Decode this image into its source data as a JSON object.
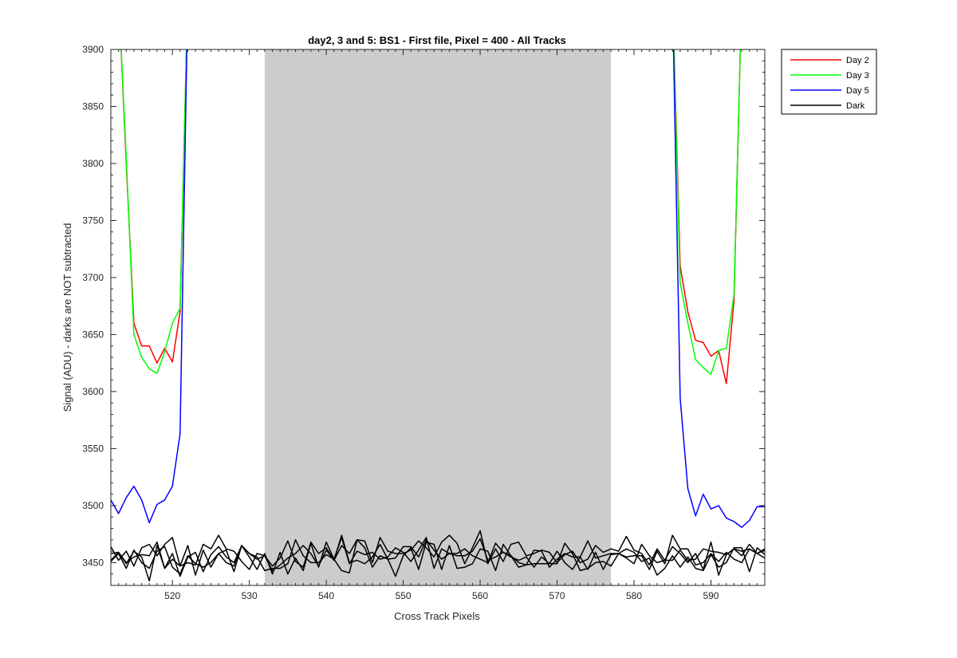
{
  "chart_data": {
    "type": "line",
    "title": "day2, 3 and 5: BS1 - First file, Pixel = 400 - All Tracks",
    "xlabel": "Cross Track Pixels",
    "ylabel": "Signal (ADU) - darks are NOT subtracted",
    "xlim": [
      512,
      597
    ],
    "ylim": [
      3430,
      3900
    ],
    "xticks": [
      520,
      530,
      540,
      550,
      560,
      570,
      580,
      590
    ],
    "yticks": [
      3450,
      3500,
      3550,
      3600,
      3650,
      3700,
      3750,
      3800,
      3850,
      3900
    ],
    "grid": false,
    "legend_position": "outside top-right",
    "shaded_region": {
      "x_start": 532,
      "x_end": 577,
      "color": "#cccccc"
    },
    "series": [
      {
        "name": "Day 2",
        "color": "#ff0000",
        "segments": [
          {
            "x": [
              513,
              514,
              515,
              516,
              517,
              518,
              519,
              520,
              521,
              522
            ],
            "y": [
              3950,
              3800,
              3660,
              3640,
              3640,
              3625,
              3638,
              3626,
              3670,
              3950
            ]
          },
          {
            "x": [
              585,
              586,
              587,
              588,
              589,
              590,
              591,
              592,
              593,
              594
            ],
            "y": [
              3950,
              3710,
              3670,
              3645,
              3643,
              3631,
              3636,
              3607,
              3680,
              3950
            ]
          }
        ]
      },
      {
        "name": "Day 3",
        "color": "#00ff00",
        "segments": [
          {
            "x": [
              513,
              514,
              515,
              516,
              517,
              518,
              519,
              520,
              521,
              522
            ],
            "y": [
              3950,
              3805,
              3650,
              3630,
              3620,
              3616,
              3635,
              3660,
              3673,
              3950
            ]
          },
          {
            "x": [
              585,
              586,
              587,
              588,
              589,
              590,
              591,
              592,
              593,
              594
            ],
            "y": [
              3950,
              3695,
              3660,
              3628,
              3621,
              3615,
              3636,
              3638,
              3685,
              3950
            ]
          }
        ]
      },
      {
        "name": "Day 5",
        "color": "#0000ff",
        "segments": [
          {
            "x": [
              512,
              513,
              514,
              515,
              516,
              517,
              518,
              519,
              520,
              521,
              522
            ],
            "y": [
              3505,
              3493,
              3507,
              3517,
              3505,
              3485,
              3501,
              3505,
              3517,
              3563,
              3950
            ]
          },
          {
            "x": [
              585,
              586,
              587,
              588,
              589,
              590,
              591,
              592,
              593,
              594,
              595,
              596,
              597
            ],
            "y": [
              3950,
              3594,
              3515,
              3491,
              3510,
              3497,
              3500,
              3489,
              3486,
              3481,
              3487,
              3499,
              3499
            ]
          }
        ]
      },
      {
        "name": "Dark",
        "color": "#000000",
        "tracks": [
          {
            "x0": 512,
            "y": [
              3464,
              3452,
              3460,
              3447,
              3463,
              3466,
              3456,
              3466,
              3472,
              3447,
              3450,
              3448,
              3466,
              3462,
              3474,
              3462,
              3460,
              3451,
              3444,
              3458,
              3456,
              3447,
              3454,
              3469,
              3451,
              3446,
              3468,
              3458,
              3463,
              3452,
              3465,
              3458,
              3470,
              3469,
              3450,
              3472,
              3460,
              3458,
              3458,
              3461,
              3469,
              3463,
              3455,
              3468,
              3474,
              3467,
              3449,
              3463,
              3478,
              3449,
              3462,
              3451,
              3466,
              3468,
              3456,
              3458,
              3461,
              3459,
              3450,
              3457,
              3460,
              3450,
              3453,
              3465,
              3459,
              3462,
              3460,
              3473,
              3461,
              3458,
              3448,
              3462,
              3452,
              3452,
              3461,
              3452,
              3453,
              3462,
              3460,
              3459,
              3457,
              3462,
              3456,
              3466,
              3458,
              3454
            ]
          },
          {
            "x0": 512,
            "y": [
              3458,
              3459,
              3449,
              3460,
              3455,
              3434,
              3465,
              3445,
              3458,
              3438,
              3455,
              3459,
              3442,
              3457,
              3464,
              3455,
              3450,
              3465,
              3458,
              3453,
              3456,
              3443,
              3448,
              3454,
              3458,
              3465,
              3458,
              3447,
              3461,
              3452,
              3474,
              3450,
              3452,
              3449,
              3455,
              3466,
              3453,
              3454,
              3464,
              3464,
              3455,
              3470,
              3461,
              3453,
              3458,
              3456,
              3456,
              3460,
              3471,
              3452,
              3455,
              3459,
              3455,
              3452,
              3455,
              3446,
              3455,
              3449,
              3460,
              3450,
              3444,
              3455,
              3469,
              3454,
              3456,
              3458,
              3458,
              3455,
              3456,
              3456,
              3444,
              3460,
              3449,
              3474,
              3462,
              3462,
              3448,
              3450,
              3458,
              3451,
              3459,
              3453,
              3450,
              3462,
              3458,
              3462
            ]
          },
          {
            "x0": 512,
            "y": [
              3452,
              3459,
              3450,
              3455,
              3457,
              3456,
              3468,
              3445,
              3453,
              3447,
              3465,
              3439,
              3461,
              3446,
              3458,
              3450,
              3447,
              3465,
              3455,
              3444,
              3458,
              3440,
              3459,
              3440,
              3454,
              3443,
              3467,
              3446,
              3468,
              3453,
              3472,
              3449,
              3460,
              3457,
              3459,
              3453,
              3455,
              3463,
              3459,
              3451,
              3461,
              3472,
              3445,
              3462,
              3458,
              3458,
              3462,
              3456,
              3453,
              3450,
              3467,
              3459,
              3456,
              3450,
              3448,
              3461,
              3460,
              3446,
              3453,
              3458,
              3455,
              3455,
              3444,
              3459,
              3444,
              3457,
              3458,
              3454,
              3449,
              3466,
              3456,
              3450,
              3452,
              3464,
              3458,
              3450,
              3458,
              3444,
              3468,
              3439,
              3457,
              3462,
              3460,
              3462,
              3458,
              3461
            ]
          },
          {
            "x0": 512,
            "y": [
              3451,
              3458,
              3445,
              3461,
              3450,
              3445,
              3460,
              3464,
              3446,
              3440,
              3456,
              3449,
              3446,
              3450,
              3458,
              3461,
              3442,
              3465,
              3458,
              3455,
              3443,
              3445,
              3445,
              3449,
              3470,
              3456,
              3450,
              3450,
              3457,
              3453,
              3443,
              3441,
              3470,
              3463,
              3446,
              3456,
              3453,
              3438,
              3456,
              3463,
              3444,
              3468,
              3466,
              3444,
              3465,
              3445,
              3446,
              3449,
              3462,
              3460,
              3443,
              3466,
              3456,
              3446,
              3448,
              3449,
              3449,
              3449,
              3449,
              3467,
              3458,
              3443,
              3445,
              3450,
              3451,
              3447,
              3458,
              3462,
              3459,
              3451,
              3454,
              3439,
              3445,
              3456,
              3446,
              3455,
              3445,
              3443,
              3457,
              3446,
              3450,
              3463,
              3463,
              3442,
              3463,
              3457
            ]
          }
        ]
      }
    ],
    "legend": [
      "Day 2",
      "Day 3",
      "Day 5",
      "Dark"
    ]
  }
}
